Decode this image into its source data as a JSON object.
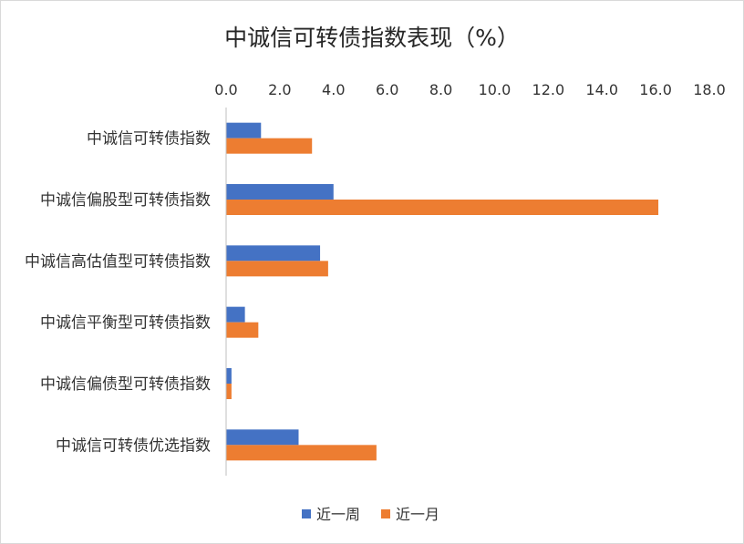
{
  "chart_data": {
    "type": "bar",
    "orientation": "horizontal",
    "title": "中诚信可转债指数表现（%）",
    "categories": [
      "中诚信可转债指数",
      "中诚信偏股型可转债指数",
      "中诚信高估值型可转债指数",
      "中诚信平衡型可转债指数",
      "中诚信偏债型可转债指数",
      "中诚信可转债优选指数"
    ],
    "series": [
      {
        "name": "近一周",
        "color": "#4472C4",
        "values": [
          1.3,
          4.0,
          3.5,
          0.7,
          0.2,
          2.7
        ]
      },
      {
        "name": "近一月",
        "color": "#ED7D31",
        "values": [
          3.2,
          16.1,
          3.8,
          1.2,
          0.2,
          5.6
        ]
      }
    ],
    "xlim": [
      0,
      18
    ],
    "xticks": [
      "0.0",
      "2.0",
      "4.0",
      "6.0",
      "8.0",
      "10.0",
      "12.0",
      "14.0",
      "16.0",
      "18.0"
    ],
    "x_axis_position": "top",
    "grid": false,
    "legend_position": "bottom"
  }
}
